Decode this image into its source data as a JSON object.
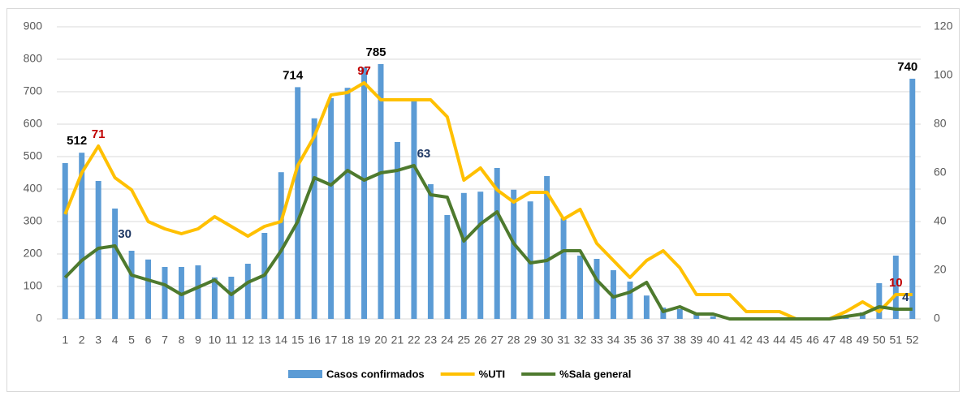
{
  "chart_data": {
    "type": "bar_line",
    "categories": [
      "1",
      "2",
      "3",
      "4",
      "5",
      "6",
      "7",
      "8",
      "9",
      "10",
      "11",
      "12",
      "13",
      "14",
      "15",
      "16",
      "17",
      "18",
      "19",
      "20",
      "21",
      "22",
      "23",
      "24",
      "25",
      "26",
      "27",
      "28",
      "29",
      "30",
      "31",
      "32",
      "33",
      "34",
      "35",
      "36",
      "37",
      "38",
      "39",
      "40",
      "41",
      "42",
      "43",
      "44",
      "45",
      "46",
      "47",
      "48",
      "49",
      "50",
      "51",
      "52"
    ],
    "series": [
      {
        "name": "Casos confirmados",
        "kind": "bar",
        "color": "#5b9bd5",
        "label_color": "#000000",
        "values": [
          480,
          512,
          425,
          340,
          210,
          183,
          160,
          160,
          165,
          128,
          130,
          170,
          265,
          452,
          714,
          618,
          680,
          712,
          775,
          785,
          545,
          680,
          415,
          320,
          388,
          392,
          465,
          398,
          362,
          440,
          310,
          195,
          185,
          150,
          115,
          72,
          35,
          30,
          15,
          8,
          3,
          2,
          2,
          1,
          1,
          1,
          5,
          10,
          20,
          110,
          195,
          740
        ],
        "value_labels": [
          null,
          "512",
          null,
          null,
          null,
          null,
          null,
          null,
          null,
          null,
          null,
          null,
          null,
          null,
          "714",
          null,
          null,
          null,
          null,
          "785",
          null,
          null,
          null,
          null,
          null,
          null,
          null,
          null,
          null,
          null,
          null,
          null,
          null,
          null,
          null,
          null,
          null,
          null,
          null,
          null,
          null,
          null,
          null,
          null,
          null,
          null,
          null,
          null,
          null,
          null,
          null,
          "740"
        ]
      },
      {
        "name": "%UTI",
        "kind": "line",
        "axis": "y2",
        "color": "#ffc000",
        "label_color": "#c00000",
        "values": [
          43,
          60,
          71,
          58,
          53,
          40,
          37,
          35,
          37,
          42,
          38,
          34,
          38,
          40,
          63,
          75,
          92,
          93,
          97,
          90,
          90,
          90,
          90,
          83,
          57,
          62,
          53,
          48,
          52,
          52,
          41,
          45,
          31,
          24,
          17,
          24,
          28,
          21,
          10,
          10,
          10,
          3,
          3,
          3,
          0,
          0,
          0,
          3,
          7,
          3,
          10,
          10
        ],
        "value_labels": [
          null,
          null,
          "71",
          null,
          null,
          null,
          null,
          null,
          null,
          null,
          null,
          null,
          null,
          null,
          null,
          null,
          null,
          null,
          "97",
          null,
          null,
          null,
          null,
          null,
          null,
          null,
          null,
          null,
          null,
          null,
          null,
          null,
          null,
          null,
          null,
          null,
          null,
          null,
          null,
          null,
          null,
          null,
          null,
          null,
          null,
          null,
          null,
          null,
          null,
          null,
          "10",
          null
        ]
      },
      {
        "name": "%Sala general",
        "kind": "line",
        "axis": "y2",
        "color": "#4e7a2e",
        "label_color": "#1f3864",
        "values": [
          17,
          24,
          29,
          30,
          18,
          16,
          14,
          10,
          13,
          16,
          10,
          15,
          18,
          28,
          40,
          58,
          55,
          61,
          57,
          60,
          61,
          63,
          51,
          50,
          32,
          39,
          44,
          31,
          23,
          24,
          28,
          28,
          16,
          9,
          11,
          15,
          3,
          5,
          2,
          2,
          0,
          0,
          0,
          0,
          0,
          0,
          0,
          1,
          2,
          5,
          4,
          4
        ],
        "value_labels": [
          null,
          null,
          null,
          "30",
          null,
          null,
          null,
          null,
          null,
          null,
          null,
          null,
          null,
          null,
          null,
          null,
          null,
          null,
          null,
          null,
          null,
          "63",
          null,
          null,
          null,
          null,
          null,
          null,
          null,
          null,
          null,
          null,
          null,
          null,
          null,
          null,
          null,
          null,
          null,
          null,
          null,
          null,
          null,
          null,
          null,
          null,
          null,
          null,
          null,
          null,
          "4",
          null
        ]
      }
    ],
    "ylim": [
      0,
      900
    ],
    "yticks": [
      0,
      100,
      200,
      300,
      400,
      500,
      600,
      700,
      800,
      900
    ],
    "y2lim": [
      0,
      120
    ],
    "y2ticks": [
      0,
      20,
      40,
      60,
      80,
      100,
      120
    ],
    "grid": true,
    "legend": "bottom"
  }
}
